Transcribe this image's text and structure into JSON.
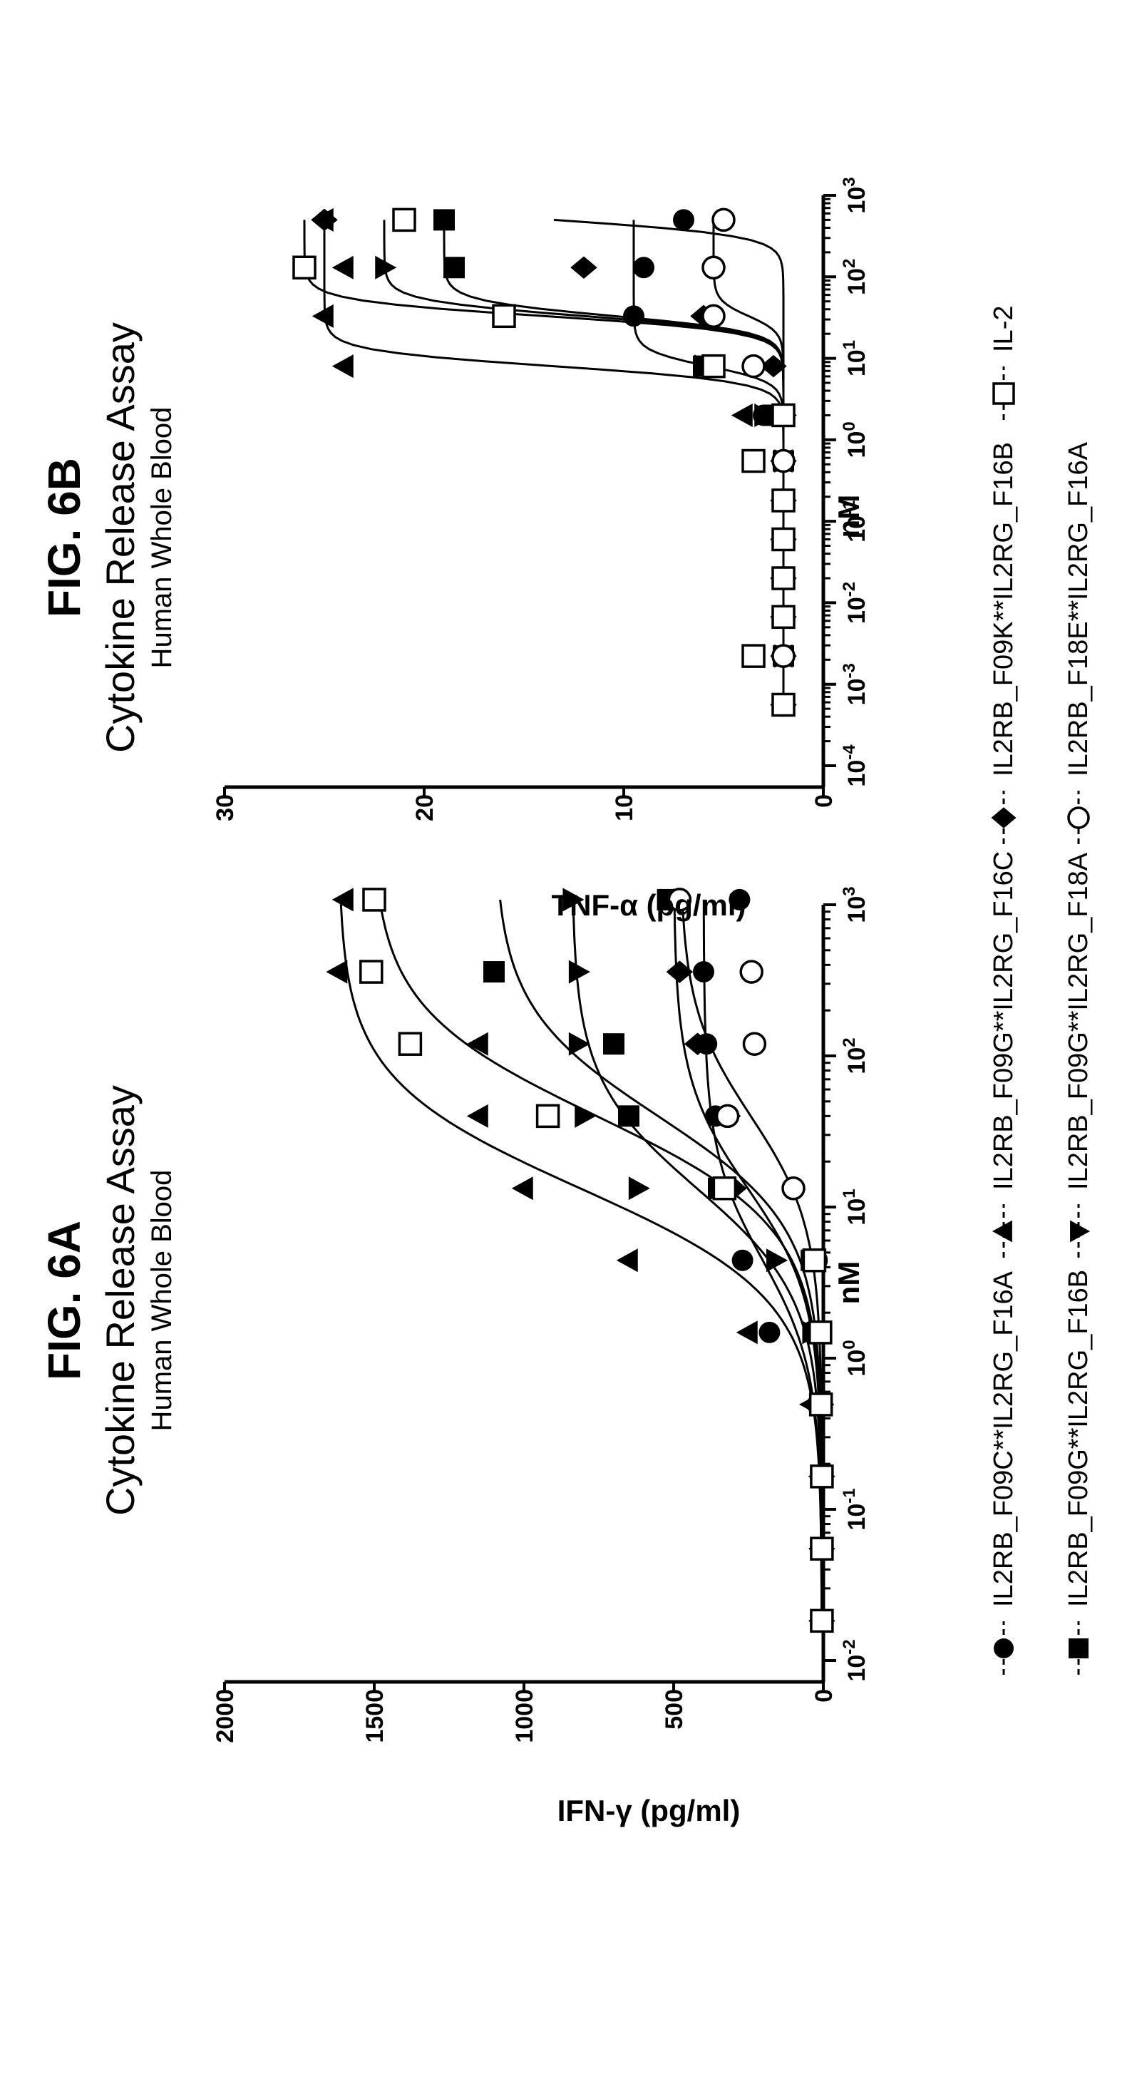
{
  "figures": [
    {
      "label": "FIG. 6A",
      "title": "Cytokine Release Assay",
      "subtitle": "Human Whole Blood"
    },
    {
      "label": "FIG. 6B",
      "title": "Cytokine Release Assay",
      "subtitle": "Human Whole Blood"
    }
  ],
  "chart_data": [
    {
      "type": "scatter",
      "title": "Cytokine Release Assay",
      "subtitle": "Human Whole Blood",
      "xlabel": "nM",
      "ylabel": "IFN-γ (pg/ml)",
      "xscale": "log",
      "xlim": [
        0.01,
        1000
      ],
      "ylim": [
        0,
        2000
      ],
      "xticks": [
        0.01,
        0.1,
        1,
        10,
        100,
        1000
      ],
      "xtick_labels": [
        [
          "10",
          "-2"
        ],
        [
          "10",
          "-1"
        ],
        [
          "10",
          "0"
        ],
        [
          "10",
          "1"
        ],
        [
          "10",
          "2"
        ],
        [
          "10",
          "3"
        ]
      ],
      "yticks": [
        0,
        500,
        1000,
        1500,
        2000
      ],
      "ytick_labels": [
        "0",
        "500",
        "1000",
        "1500",
        "2000"
      ],
      "x": [
        0.0183,
        0.0549,
        0.165,
        0.494,
        1.48,
        4.44,
        13.3,
        40.0,
        120,
        360,
        1080
      ],
      "series": [
        {
          "marker": "circle-filled",
          "values": [
            5,
            5,
            8,
            20,
            180,
            270,
            310,
            360,
            390,
            400,
            280
          ]
        },
        {
          "marker": "square-filled",
          "values": [
            5,
            5,
            5,
            10,
            20,
            40,
            350,
            650,
            700,
            1100,
            520
          ]
        },
        {
          "marker": "triangle-filled",
          "values": [
            5,
            5,
            10,
            40,
            250,
            650,
            1000,
            1150,
            1150,
            1620,
            1600
          ]
        },
        {
          "marker": "triangle-down-filled",
          "values": [
            5,
            5,
            8,
            15,
            40,
            160,
            620,
            800,
            820,
            820,
            840
          ]
        },
        {
          "marker": "diamond-filled",
          "values": [
            5,
            5,
            5,
            8,
            15,
            30,
            300,
            320,
            420,
            480,
            500
          ]
        },
        {
          "marker": "circle-open",
          "values": [
            5,
            5,
            5,
            8,
            15,
            25,
            100,
            320,
            230,
            240,
            480
          ]
        },
        {
          "marker": "square-open",
          "values": [
            5,
            5,
            5,
            8,
            10,
            30,
            330,
            920,
            1380,
            1510,
            1500
          ]
        }
      ]
    },
    {
      "type": "scatter",
      "title": "Cytokine Release Assay",
      "subtitle": "Human Whole Blood",
      "xlabel": "nM",
      "ylabel": "TNF-α (pg/ml)",
      "xscale": "log",
      "xlim": [
        0.0001,
        1000
      ],
      "ylim": [
        0,
        30
      ],
      "xticks": [
        0.0001,
        0.001,
        0.01,
        0.1,
        1,
        10,
        100,
        1000
      ],
      "xtick_labels": [
        [
          "10",
          "-4"
        ],
        [
          "10",
          "-3"
        ],
        [
          "10",
          "-2"
        ],
        [
          "10",
          "-1"
        ],
        [
          "10",
          "0"
        ],
        [
          "10",
          "1"
        ],
        [
          "10",
          "2"
        ],
        [
          "10",
          "3"
        ]
      ],
      "yticks": [
        0,
        10,
        20,
        30
      ],
      "ytick_labels": [
        "0",
        "10",
        "20",
        "30"
      ],
      "x": [
        0.00056,
        0.00222,
        0.0067,
        0.02,
        0.06,
        0.18,
        0.55,
        2.0,
        8.0,
        33,
        130,
        500
      ],
      "series": [
        {
          "marker": "circle-filled",
          "values": [
            2,
            2,
            2,
            2,
            2,
            2,
            2,
            3,
            6,
            9.5,
            9,
            7
          ]
        },
        {
          "marker": "square-filled",
          "values": [
            2,
            2,
            2,
            2,
            2,
            2,
            2,
            2.5,
            6,
            16,
            18.5,
            19
          ]
        },
        {
          "marker": "triangle-filled",
          "values": [
            2,
            2,
            2,
            2,
            2,
            2,
            2,
            4,
            24,
            25,
            24,
            25
          ]
        },
        {
          "marker": "triangle-down-filled",
          "values": [
            2,
            2,
            2,
            2,
            2,
            2,
            2,
            3,
            6,
            16,
            22,
            21
          ]
        },
        {
          "marker": "diamond-filled",
          "values": [
            2,
            2,
            2,
            2,
            2,
            2,
            2,
            2,
            2.5,
            6,
            12,
            25
          ]
        },
        {
          "marker": "circle-open",
          "values": [
            2,
            2,
            2,
            2,
            2,
            2,
            2,
            2,
            3.5,
            5.5,
            5.5,
            5
          ]
        },
        {
          "marker": "square-open",
          "values": [
            2,
            3.5,
            2,
            2,
            2,
            2,
            3.5,
            2,
            5.5,
            16,
            26,
            21
          ]
        }
      ]
    }
  ],
  "legend": [
    {
      "marker": "circle-filled",
      "label": "IL2RB_F09C**IL2RG_F16A"
    },
    {
      "marker": "triangle-filled",
      "label": "IL2RB_F09G**IL2RG_F16C"
    },
    {
      "marker": "diamond-filled",
      "label": "IL2RB_F09K**IL2RG_F16B"
    },
    {
      "marker": "square-open",
      "label": "IL-2"
    },
    {
      "marker": "square-filled",
      "label": "IL2RB_F09G**IL2RG_F16B"
    },
    {
      "marker": "triangle-down-filled",
      "label": "IL2RB_F09G**IL2RG_F18A"
    },
    {
      "marker": "circle-open",
      "label": "IL2RB_F18E**IL2RG_F16A"
    }
  ]
}
